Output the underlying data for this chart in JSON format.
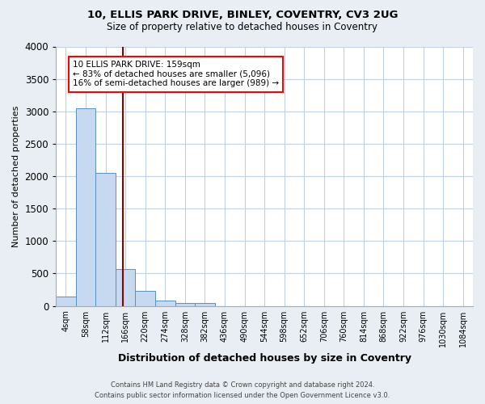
{
  "title1": "10, ELLIS PARK DRIVE, BINLEY, COVENTRY, CV3 2UG",
  "title2": "Size of property relative to detached houses in Coventry",
  "xlabel": "Distribution of detached houses by size in Coventry",
  "ylabel": "Number of detached properties",
  "bar_labels": [
    "4sqm",
    "58sqm",
    "112sqm",
    "166sqm",
    "220sqm",
    "274sqm",
    "328sqm",
    "382sqm",
    "436sqm",
    "490sqm",
    "544sqm",
    "598sqm",
    "652sqm",
    "706sqm",
    "760sqm",
    "814sqm",
    "868sqm",
    "922sqm",
    "976sqm",
    "1030sqm",
    "1084sqm"
  ],
  "bar_values": [
    150,
    3050,
    2050,
    570,
    230,
    80,
    50,
    50,
    0,
    0,
    0,
    0,
    0,
    0,
    0,
    0,
    0,
    0,
    0,
    0,
    0
  ],
  "bar_color": "#c6d9f0",
  "bar_edge_color": "#5a8fc3",
  "ylim": [
    0,
    4000
  ],
  "yticks": [
    0,
    500,
    1000,
    1500,
    2000,
    2500,
    3000,
    3500,
    4000
  ],
  "red_line_x": 2.87,
  "red_line_color": "#8b0000",
  "annotation_line1": "10 ELLIS PARK DRIVE: 159sqm",
  "annotation_line2": "← 83% of detached houses are smaller (5,096)",
  "annotation_line3": "16% of semi-detached houses are larger (989) →",
  "footnote1": "Contains HM Land Registry data © Crown copyright and database right 2024.",
  "footnote2": "Contains public sector information licensed under the Open Government Licence v3.0.",
  "background_color": "#e8eef4",
  "plot_bg_color": "#ffffff",
  "grid_color": "#c0d0e0"
}
